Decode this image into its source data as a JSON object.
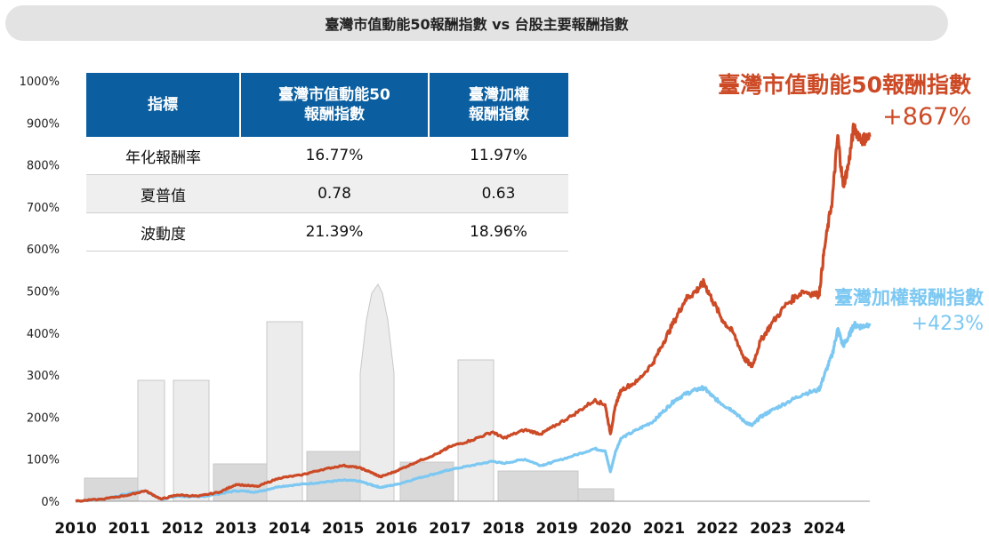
{
  "chart_data": {
    "type": "line",
    "title": "臺灣市值動能50報酬指數 vs 台股主要報酬指數",
    "xlabel": "",
    "ylabel": "",
    "x_ticks": [
      "2010",
      "2011",
      "2012",
      "2013",
      "2014",
      "2015",
      "2016",
      "2017",
      "2018",
      "2019",
      "2020",
      "2021",
      "2022",
      "2023",
      "2024"
    ],
    "y_ticks": [
      "0%",
      "100%",
      "200%",
      "300%",
      "400%",
      "500%",
      "600%",
      "700%",
      "800%",
      "900%",
      "1000%"
    ],
    "xlim": [
      2010,
      2024.85
    ],
    "ylim": [
      0,
      1000
    ],
    "series": [
      {
        "name": "臺灣市值動能50報酬指數",
        "color": "#cc4a26",
        "final_label": "+867%",
        "x": [
          2010,
          2010.5,
          2011,
          2011.3,
          2011.6,
          2011.9,
          2012.3,
          2012.7,
          2013,
          2013.4,
          2013.8,
          2014.2,
          2014.6,
          2015,
          2015.3,
          2015.5,
          2015.7,
          2016,
          2016.4,
          2016.8,
          2017,
          2017.4,
          2017.8,
          2018,
          2018.4,
          2018.7,
          2018.9,
          2019.3,
          2019.7,
          2019.9,
          2020.0,
          2020.1,
          2020.2,
          2020.5,
          2020.8,
          2021,
          2021.2,
          2021.4,
          2021.6,
          2021.75,
          2021.9,
          2022.1,
          2022.3,
          2022.5,
          2022.65,
          2022.8,
          2023,
          2023.3,
          2023.6,
          2023.9,
          2024,
          2024.15,
          2024.25,
          2024.35,
          2024.45,
          2024.55,
          2024.7,
          2024.85
        ],
        "y": [
          0,
          5,
          15,
          25,
          5,
          15,
          12,
          22,
          40,
          35,
          55,
          62,
          75,
          85,
          80,
          70,
          58,
          72,
          95,
          115,
          130,
          145,
          165,
          150,
          170,
          160,
          175,
          205,
          240,
          230,
          160,
          230,
          265,
          285,
          330,
          380,
          430,
          480,
          500,
          520,
          480,
          430,
          400,
          340,
          320,
          380,
          420,
          470,
          500,
          490,
          600,
          720,
          870,
          750,
          800,
          890,
          860,
          867
        ]
      },
      {
        "name": "臺灣加權報酬指數",
        "color": "#7cc8f2",
        "final_label": "+423%",
        "x": [
          2010,
          2010.5,
          2011,
          2011.3,
          2011.6,
          2011.9,
          2012.3,
          2012.7,
          2013,
          2013.4,
          2013.8,
          2014.2,
          2014.6,
          2015,
          2015.3,
          2015.5,
          2015.7,
          2016,
          2016.4,
          2016.8,
          2017,
          2017.4,
          2017.8,
          2018,
          2018.4,
          2018.7,
          2018.9,
          2019.3,
          2019.7,
          2019.9,
          2020.0,
          2020.1,
          2020.2,
          2020.5,
          2020.8,
          2021,
          2021.2,
          2021.4,
          2021.6,
          2021.75,
          2021.9,
          2022.1,
          2022.3,
          2022.5,
          2022.65,
          2022.8,
          2023,
          2023.3,
          2023.6,
          2023.9,
          2024,
          2024.15,
          2024.25,
          2024.35,
          2024.45,
          2024.55,
          2024.7,
          2024.85
        ],
        "y": [
          0,
          5,
          18,
          25,
          5,
          12,
          10,
          18,
          25,
          22,
          35,
          40,
          45,
          50,
          48,
          40,
          33,
          40,
          55,
          68,
          75,
          85,
          95,
          90,
          100,
          85,
          92,
          108,
          125,
          120,
          70,
          120,
          150,
          170,
          190,
          215,
          240,
          255,
          265,
          270,
          250,
          230,
          215,
          190,
          180,
          200,
          215,
          235,
          255,
          265,
          300,
          350,
          410,
          370,
          390,
          420,
          415,
          423
        ]
      }
    ]
  },
  "table": {
    "headers": [
      "指標",
      "臺灣市值動能50\n報酬指數",
      "臺灣加權\n報酬指數"
    ],
    "rows": [
      {
        "metric": "年化報酬率",
        "v1": "16.77%",
        "v2": "11.97%"
      },
      {
        "metric": "夏普值",
        "v1": "0.78",
        "v2": "0.63"
      },
      {
        "metric": "波動度",
        "v1": "21.39%",
        "v2": "18.96%"
      }
    ]
  }
}
